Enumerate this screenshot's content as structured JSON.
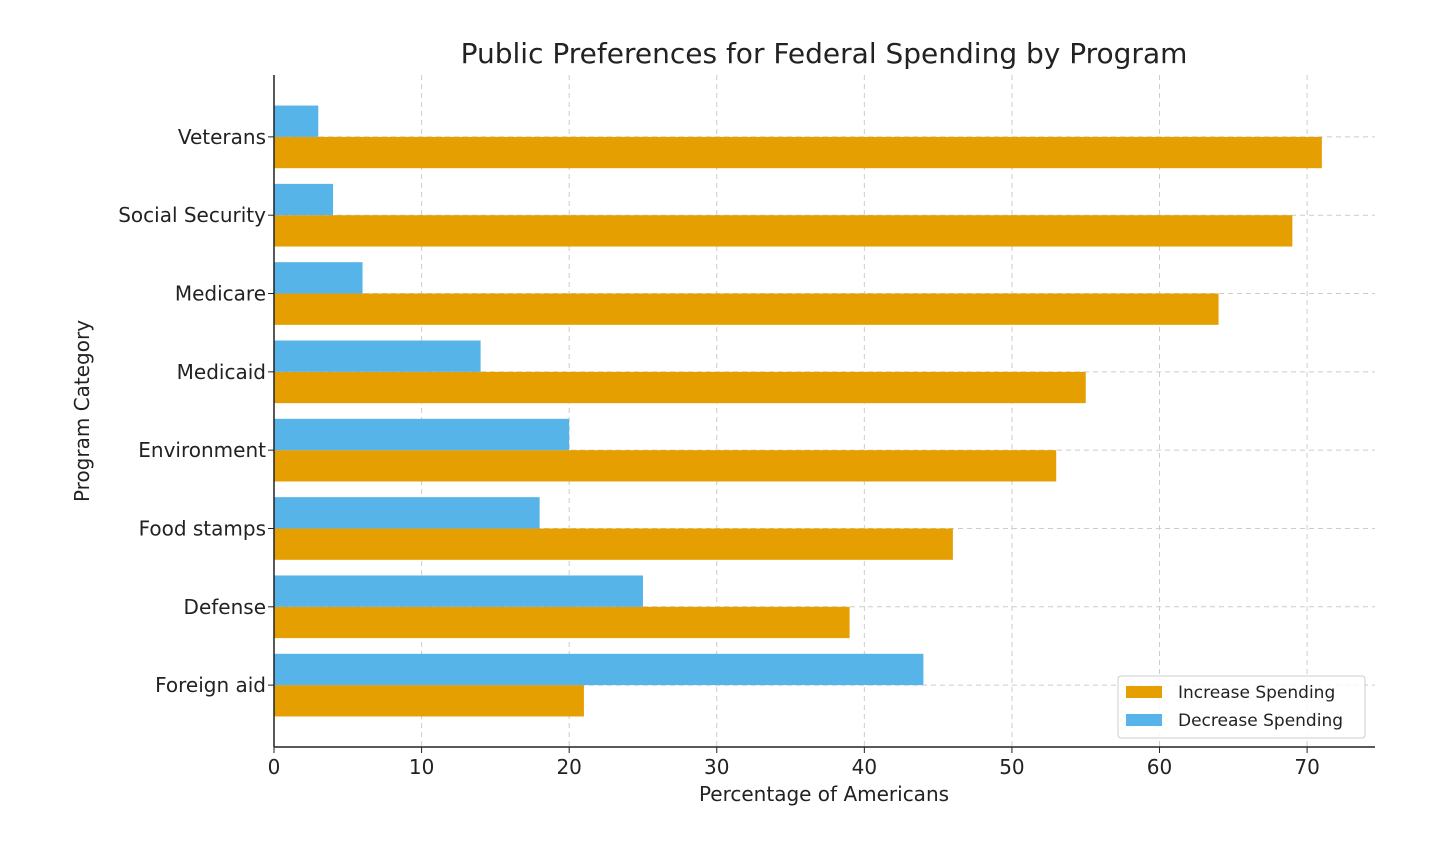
{
  "chart_data": {
    "type": "bar",
    "orientation": "horizontal",
    "title": "Public Preferences for Federal Spending by Program",
    "xlabel": "Percentage of Americans",
    "ylabel": "Program Category",
    "categories": [
      "Foreign aid",
      "Defense",
      "Food stamps",
      "Environment",
      "Medicaid",
      "Medicare",
      "Social Security",
      "Veterans"
    ],
    "series": [
      {
        "name": "Increase Spending",
        "color": "#E69F00",
        "values": [
          21,
          39,
          46,
          53,
          55,
          64,
          69,
          71
        ]
      },
      {
        "name": "Decrease Spending",
        "color": "#56B4E9",
        "values": [
          44,
          25,
          18,
          20,
          14,
          6,
          4,
          3
        ]
      }
    ],
    "xticks": [
      "0",
      "10",
      "20",
      "30",
      "40",
      "50",
      "60",
      "70"
    ],
    "xlim": [
      0,
      74.6
    ],
    "grid": true,
    "legend_position": "bottom-right"
  }
}
